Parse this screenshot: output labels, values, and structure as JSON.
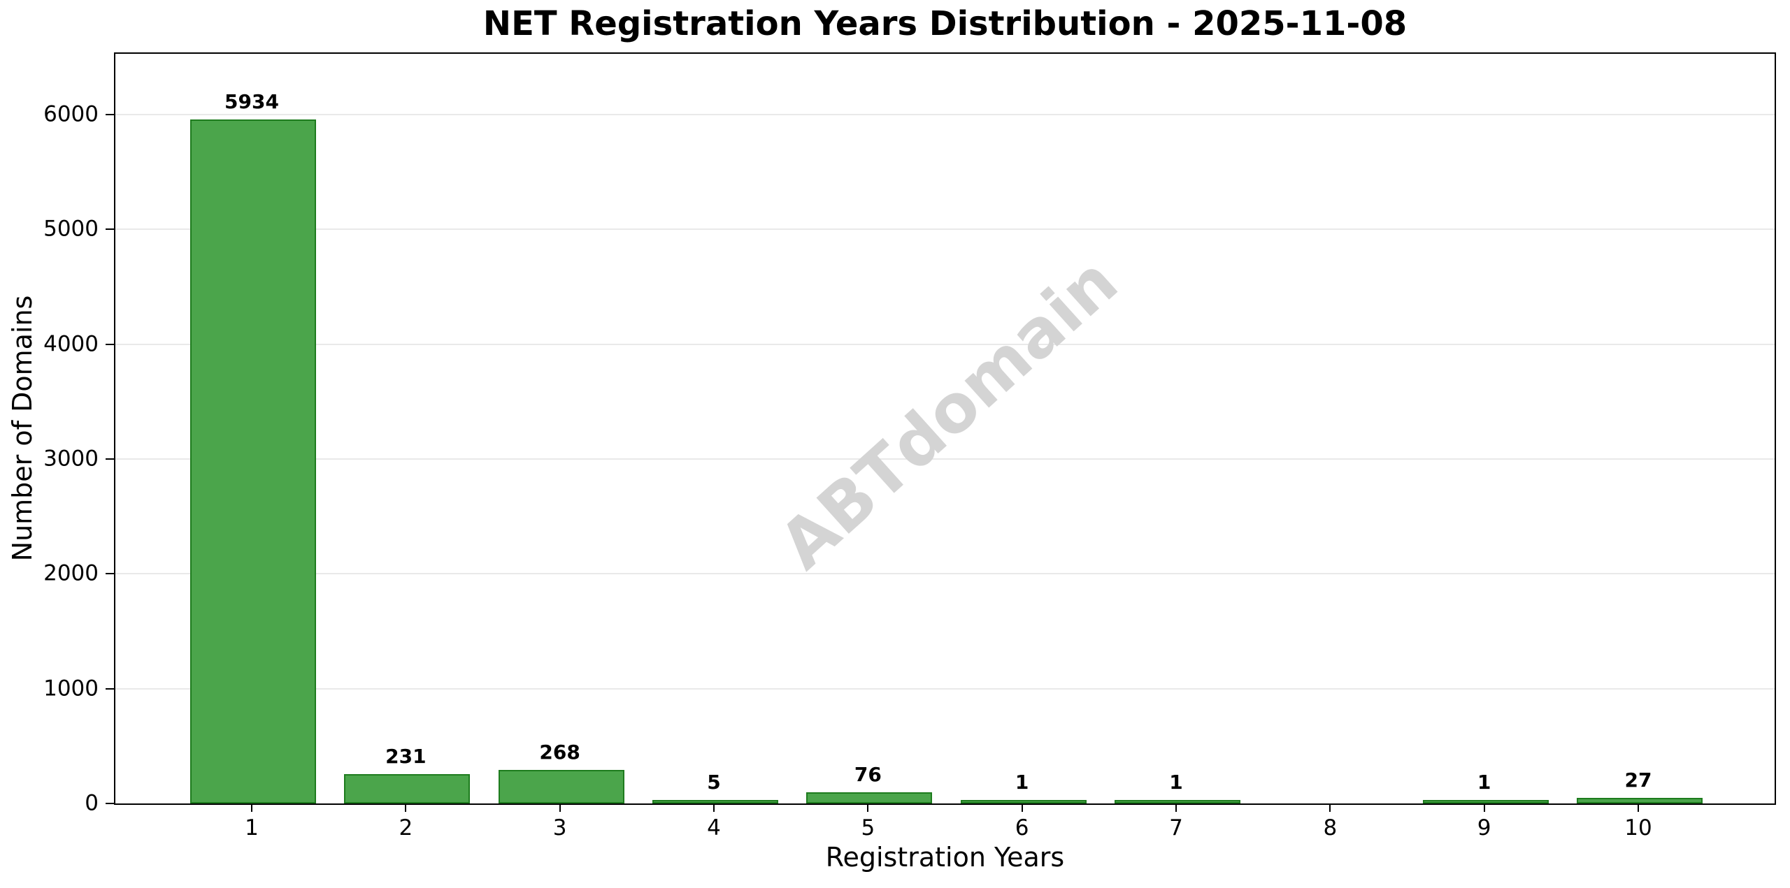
{
  "chart_data": {
    "type": "bar",
    "title": "NET Registration Years Distribution - 2025-11-08",
    "xlabel": "Registration Years",
    "ylabel": "Number of Domains",
    "categories": [
      "1",
      "2",
      "3",
      "4",
      "5",
      "6",
      "7",
      "8",
      "9",
      "10"
    ],
    "values": [
      5934,
      231,
      268,
      5,
      76,
      1,
      1,
      0,
      1,
      27
    ],
    "bar_labels": [
      "5934",
      "231",
      "268",
      "5",
      "76",
      "1",
      "1",
      "",
      "1",
      "27"
    ],
    "yticks": [
      0,
      1000,
      2000,
      3000,
      4000,
      5000,
      6000
    ],
    "ylim": [
      0,
      6530
    ],
    "grid": "horizontal",
    "legend_position": "none",
    "watermark": "ABTdomain",
    "colors": {
      "bar_fill": "#4ba54b",
      "bar_edge": "#1e7c1e",
      "grid": "#e9e9e9",
      "spine": "#000000",
      "text": "#000000",
      "watermark": "#d4d4d4",
      "background": "#ffffff"
    }
  }
}
